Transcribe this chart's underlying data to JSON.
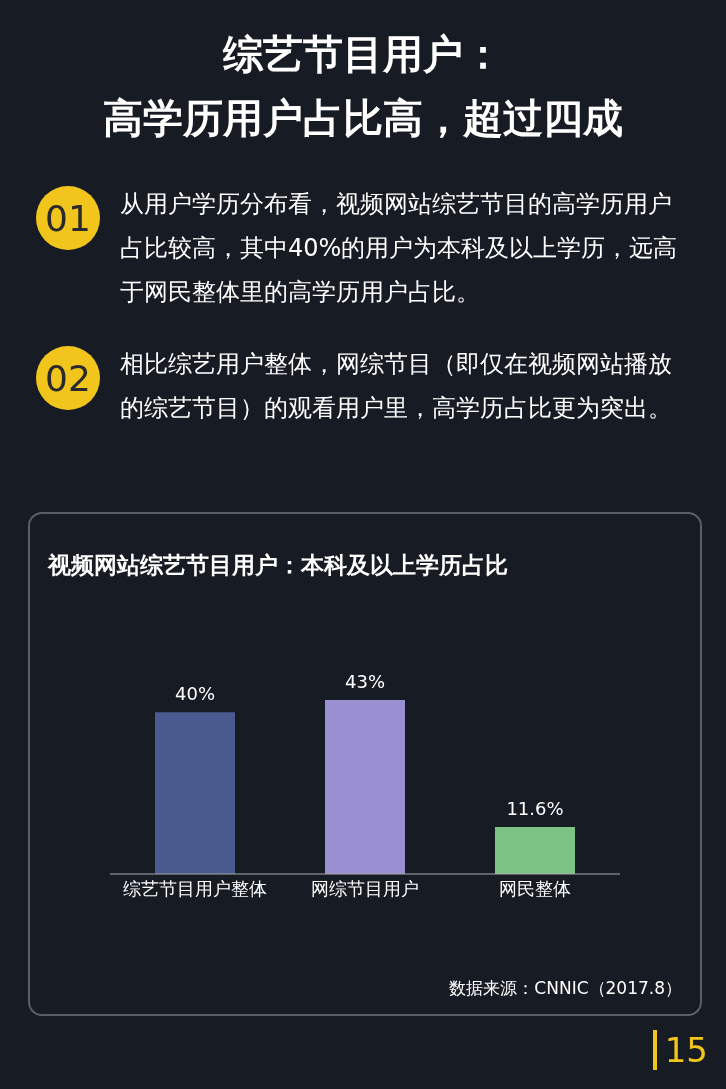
{
  "chart_data": {
    "type": "bar",
    "title": "视频网站综艺节目用户：本科及以上学历占比",
    "annotations": [
      "综艺节目用户：",
      "高学历用户占比高，超过四成",
      "01",
      "从用户学历分布看，视频网站综艺节目的高学历用户占比较高，其中40%的用户为本科及以上学历，远高于网民整体里的高学历用户占比。",
      "02",
      "相比综艺用户整体，网综节目（即仅在视频网站播放的综艺节目）的观看用户里，高学历占比更为突出。",
      "数据来源：CNNIC（2017.8）",
      "15"
    ],
    "categories": [
      "综艺节目用户整体",
      "网综节目用户",
      "网民整体"
    ],
    "values": [
      40,
      43,
      11.6
    ],
    "value_labels": [
      "40%",
      "43%",
      "11.6%"
    ],
    "colors": [
      "#4a5a8e",
      "#9a8fd0",
      "#7cc383"
    ],
    "grid": false,
    "legend": false
  }
}
